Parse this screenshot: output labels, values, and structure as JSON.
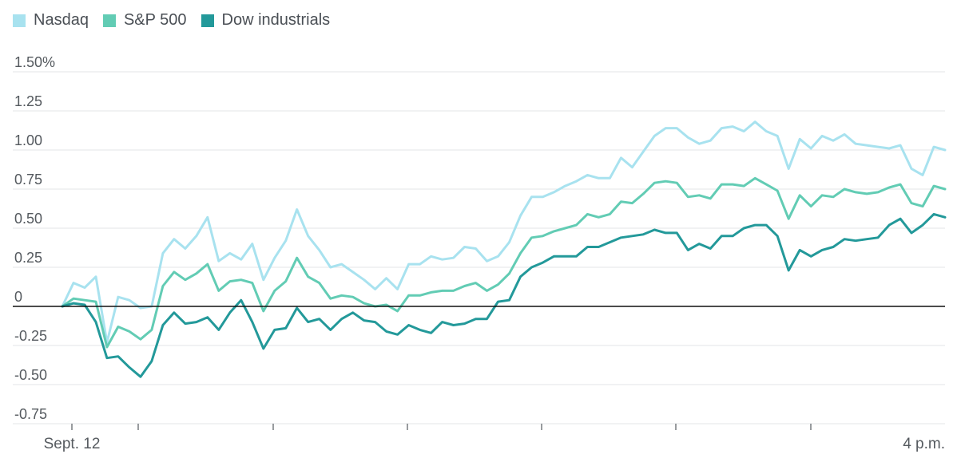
{
  "chart_data": {
    "type": "line",
    "title": "",
    "xlabel": "",
    "ylabel": "",
    "ylim": [
      -0.75,
      1.5
    ],
    "y_ticks": [
      {
        "value": 1.5,
        "label": "1.50%"
      },
      {
        "value": 1.25,
        "label": "1.25"
      },
      {
        "value": 1.0,
        "label": "1.00"
      },
      {
        "value": 0.75,
        "label": "0.75"
      },
      {
        "value": 0.5,
        "label": "0.50"
      },
      {
        "value": 0.25,
        "label": "0.25"
      },
      {
        "value": 0,
        "label": "0"
      },
      {
        "value": -0.25,
        "label": "-0.25"
      },
      {
        "value": -0.5,
        "label": "-0.50"
      },
      {
        "value": -0.75,
        "label": "-0.75"
      }
    ],
    "x_labels": {
      "start": "Sept. 12",
      "end": "4 p.m."
    },
    "grid": true,
    "legend_position": "top-left",
    "series": [
      {
        "name": "Nasdaq",
        "color": "#a8e2ef",
        "values": [
          0,
          0.15,
          0.12,
          0.19,
          -0.23,
          0.06,
          0.04,
          -0.01,
          0,
          0.34,
          0.43,
          0.37,
          0.45,
          0.57,
          0.29,
          0.34,
          0.3,
          0.4,
          0.17,
          0.31,
          0.42,
          0.62,
          0.45,
          0.36,
          0.25,
          0.27,
          0.22,
          0.17,
          0.11,
          0.18,
          0.11,
          0.27,
          0.27,
          0.32,
          0.3,
          0.31,
          0.38,
          0.37,
          0.29,
          0.32,
          0.41,
          0.58,
          0.7,
          0.7,
          0.73,
          0.77,
          0.8,
          0.84,
          0.82,
          0.82,
          0.95,
          0.89,
          0.99,
          1.09,
          1.14,
          1.14,
          1.08,
          1.04,
          1.06,
          1.14,
          1.15,
          1.12,
          1.18,
          1.12,
          1.09,
          0.88,
          1.07,
          1.01,
          1.09,
          1.06,
          1.1,
          1.04,
          1.03,
          1.02,
          1.01,
          1.03,
          0.88,
          0.84,
          1.02,
          1.0
        ]
      },
      {
        "name": "S&P 500",
        "color": "#62ccb4",
        "values": [
          0,
          0.05,
          0.04,
          0.03,
          -0.26,
          -0.13,
          -0.16,
          -0.21,
          -0.15,
          0.13,
          0.22,
          0.17,
          0.21,
          0.27,
          0.1,
          0.16,
          0.17,
          0.15,
          -0.03,
          0.1,
          0.16,
          0.31,
          0.19,
          0.15,
          0.05,
          0.07,
          0.06,
          0.02,
          0,
          0.01,
          -0.03,
          0.07,
          0.07,
          0.09,
          0.1,
          0.1,
          0.13,
          0.15,
          0.1,
          0.14,
          0.21,
          0.34,
          0.44,
          0.45,
          0.48,
          0.5,
          0.52,
          0.59,
          0.57,
          0.59,
          0.67,
          0.66,
          0.72,
          0.79,
          0.8,
          0.79,
          0.7,
          0.71,
          0.69,
          0.78,
          0.78,
          0.77,
          0.82,
          0.78,
          0.74,
          0.56,
          0.71,
          0.64,
          0.71,
          0.7,
          0.75,
          0.73,
          0.72,
          0.73,
          0.76,
          0.78,
          0.66,
          0.64,
          0.77,
          0.75
        ]
      },
      {
        "name": "Dow industrials",
        "color": "#23999a",
        "values": [
          0,
          0.02,
          0.01,
          -0.1,
          -0.33,
          -0.32,
          -0.39,
          -0.45,
          -0.35,
          -0.12,
          -0.04,
          -0.11,
          -0.1,
          -0.07,
          -0.15,
          -0.04,
          0.04,
          -0.1,
          -0.27,
          -0.15,
          -0.14,
          -0.01,
          -0.1,
          -0.08,
          -0.15,
          -0.08,
          -0.04,
          -0.09,
          -0.1,
          -0.16,
          -0.18,
          -0.12,
          -0.15,
          -0.17,
          -0.1,
          -0.12,
          -0.11,
          -0.08,
          -0.08,
          0.03,
          0.04,
          0.19,
          0.25,
          0.28,
          0.32,
          0.32,
          0.32,
          0.38,
          0.38,
          0.41,
          0.44,
          0.45,
          0.46,
          0.49,
          0.47,
          0.47,
          0.36,
          0.4,
          0.37,
          0.45,
          0.45,
          0.5,
          0.52,
          0.52,
          0.45,
          0.23,
          0.36,
          0.32,
          0.36,
          0.38,
          0.43,
          0.42,
          0.43,
          0.44,
          0.52,
          0.56,
          0.47,
          0.52,
          0.59,
          0.57
        ]
      }
    ]
  }
}
